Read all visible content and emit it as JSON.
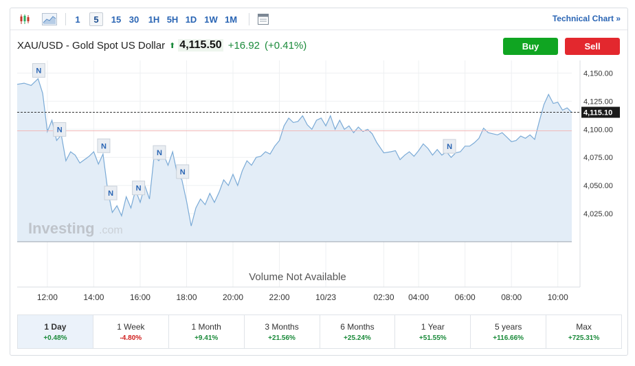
{
  "toolbar": {
    "timeframes": [
      "1",
      "5",
      "15",
      "30",
      "1H",
      "5H",
      "1D",
      "1W",
      "1M"
    ],
    "active_timeframe": "5",
    "technical_chart_label": "Technical Chart",
    "technical_chart_arrow": "»"
  },
  "instrument": {
    "name": "XAU/USD - Gold Spot US Dollar",
    "direction_arrow": "⬆",
    "price": "4,115.50",
    "change": "+16.92",
    "change_pct": "(+0.41%)"
  },
  "actions": {
    "buy_label": "Buy",
    "sell_label": "Sell"
  },
  "watermark": {
    "brand": "Investing",
    "suffix": ".com"
  },
  "volume_message": "Volume Not Available",
  "colors": {
    "accent": "#2a65b4",
    "up": "#1a8a3a",
    "down": "#d0201f",
    "buy": "#10a522",
    "sell": "#e3282e",
    "line": "#7aaad6",
    "area": "#e3edf7",
    "ref_line": "#f2b8b8"
  },
  "chart_data": {
    "type": "area",
    "ylim": [
      4000,
      4160
    ],
    "yticks": [
      4150,
      4125,
      4100,
      4075,
      4050,
      4025
    ],
    "ytick_labels": [
      "4,150.00",
      "4,125.00",
      "4,100.00",
      "4,075.00",
      "4,050.00",
      "4,025.00"
    ],
    "xtick_labels": [
      "12:00",
      "14:00",
      "16:00",
      "18:00",
      "20:00",
      "22:00",
      "10/23",
      "02:30",
      "04:00",
      "06:00",
      "08:00",
      "10:00"
    ],
    "xtick_hours": [
      12,
      14,
      16,
      18,
      20,
      22,
      24,
      26.5,
      28,
      30,
      32,
      34
    ],
    "x_range_hours": [
      10.7,
      34.6
    ],
    "current_price": 4115.1,
    "current_price_label": "4,115.10",
    "reference_price": 4098.6,
    "news_marker_label": "N",
    "news_markers_hours": [
      11.6,
      12.5,
      14.4,
      14.7,
      15.9,
      16.8,
      17.8,
      29.3
    ],
    "series": [
      {
        "x": [
          10.7,
          11.0,
          11.3,
          11.6,
          11.8,
          12.0,
          12.2,
          12.4,
          12.6,
          12.8,
          13.0,
          13.2,
          13.4,
          13.6,
          13.8,
          14.0,
          14.2,
          14.4,
          14.6,
          14.8,
          15.0,
          15.2,
          15.4,
          15.6,
          15.8,
          16.0,
          16.2,
          16.4,
          16.6,
          16.8,
          17.0,
          17.2,
          17.4,
          17.6,
          17.8,
          18.0,
          18.2,
          18.4,
          18.6,
          18.8,
          19.0,
          19.2,
          19.4,
          19.6,
          19.8,
          20.0,
          20.2,
          20.4,
          20.6,
          20.8,
          21.0,
          21.2,
          21.4,
          21.6,
          21.8,
          22.0,
          22.2,
          22.4,
          22.6,
          22.8,
          23.0,
          23.2,
          23.4,
          23.6,
          23.8,
          24.0,
          24.2,
          24.4,
          24.6,
          24.8,
          25.0,
          25.2,
          25.4,
          25.6,
          25.8,
          26.0,
          26.2,
          26.5,
          26.8,
          27.0,
          27.2,
          27.4,
          27.6,
          27.8,
          28.0,
          28.2,
          28.4,
          28.6,
          28.8,
          29.0,
          29.2,
          29.4,
          29.6,
          29.8,
          30.0,
          30.2,
          30.4,
          30.6,
          30.8,
          31.0,
          31.2,
          31.4,
          31.6,
          31.8,
          32.0,
          32.2,
          32.4,
          32.6,
          32.8,
          33.0,
          33.2,
          33.4,
          33.6,
          33.8,
          34.0,
          34.2,
          34.4,
          34.6
        ],
        "y": [
          4140,
          4141,
          4139,
          4145,
          4132,
          4098,
          4108,
          4090,
          4095,
          4072,
          4080,
          4077,
          4070,
          4073,
          4076,
          4080,
          4069,
          4078,
          4046,
          4026,
          4032,
          4023,
          4040,
          4030,
          4046,
          4035,
          4050,
          4038,
          4076,
          4072,
          4078,
          4068,
          4080,
          4060,
          4055,
          4036,
          4014,
          4030,
          4038,
          4033,
          4043,
          4035,
          4044,
          4055,
          4050,
          4060,
          4050,
          4063,
          4072,
          4068,
          4075,
          4076,
          4080,
          4078,
          4085,
          4090,
          4103,
          4110,
          4106,
          4107,
          4112,
          4104,
          4100,
          4108,
          4110,
          4103,
          4112,
          4100,
          4108,
          4100,
          4103,
          4097,
          4102,
          4098,
          4100,
          4096,
          4088,
          4079,
          4080,
          4081,
          4073,
          4077,
          4080,
          4076,
          4081,
          4087,
          4083,
          4077,
          4082,
          4077,
          4080,
          4075,
          4079,
          4080,
          4085,
          4085,
          4088,
          4092,
          4101,
          4097,
          4096,
          4095,
          4097,
          4093,
          4089,
          4090,
          4094,
          4092,
          4095,
          4091,
          4107,
          4122,
          4131,
          4123,
          4124,
          4117,
          4119,
          4115
        ]
      }
    ]
  },
  "periods": [
    {
      "label": "1 Day",
      "change": "+0.48%",
      "dir": "pos"
    },
    {
      "label": "1 Week",
      "change": "-4.80%",
      "dir": "neg"
    },
    {
      "label": "1 Month",
      "change": "+9.41%",
      "dir": "pos"
    },
    {
      "label": "3 Months",
      "change": "+21.56%",
      "dir": "pos"
    },
    {
      "label": "6 Months",
      "change": "+25.24%",
      "dir": "pos"
    },
    {
      "label": "1 Year",
      "change": "+51.55%",
      "dir": "pos"
    },
    {
      "label": "5 years",
      "change": "+116.66%",
      "dir": "pos"
    },
    {
      "label": "Max",
      "change": "+725.31%",
      "dir": "pos"
    }
  ],
  "active_period": "1 Day"
}
